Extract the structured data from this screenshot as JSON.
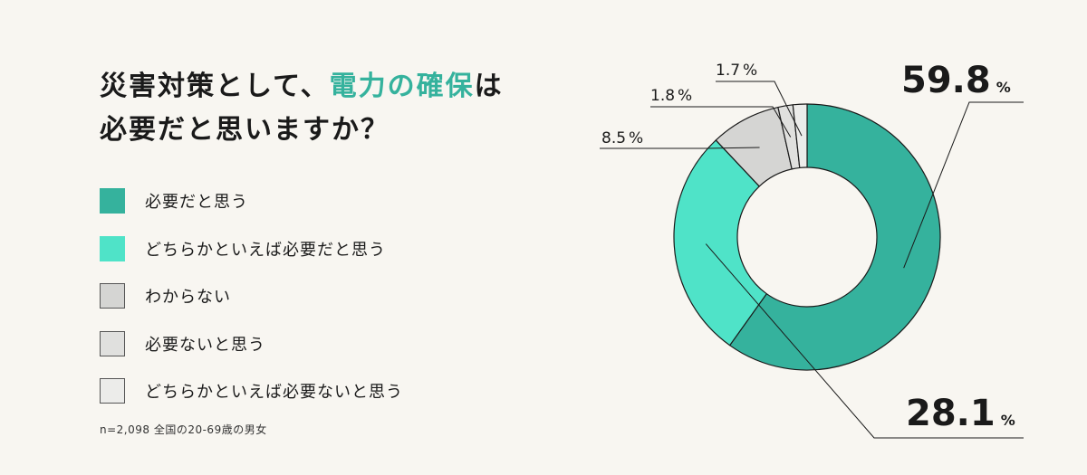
{
  "title": {
    "line1_prefix": "災害対策として、",
    "line1_highlight": "電力の確保",
    "line1_suffix": "は",
    "line2": "必要だと思いますか？"
  },
  "note": "n=2,098  全国の20-69歳の男女",
  "chart_data": {
    "type": "pie",
    "donut": true,
    "title": "災害対策として、電力の確保は必要だと思いますか？",
    "unit": "%",
    "categories": [
      "必要だと思う",
      "どちらかといえば必要だと思う",
      "わからない",
      "必要ないと思う",
      "どちらかといえば必要ないと思う"
    ],
    "values": [
      59.8,
      28.1,
      8.5,
      1.8,
      1.7
    ],
    "labels": [
      "59.8",
      "28.1",
      "8.5",
      "1.8",
      "1.7"
    ],
    "colors": [
      "#35b29d",
      "#4fe3c8",
      "#d5d5d3",
      "#e0e0de",
      "#ececea"
    ],
    "legend_position": "left"
  }
}
